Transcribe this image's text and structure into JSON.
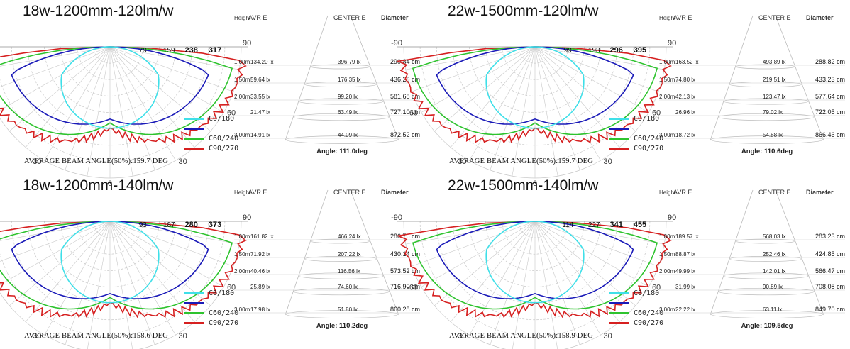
{
  "colors": {
    "c0_180": "#3fdfe8",
    "c60_240": "#2ec32e",
    "c90_270": "#d62020",
    "extra": "#1a1ab8",
    "grid": "#c8c8c8",
    "text": "#111111"
  },
  "legend": [
    "C0/180",
    "C60/240",
    "C90/270"
  ],
  "table_headers": {
    "height": "Height",
    "avr": "AVR E",
    "center": "CENTER E",
    "diameter": "Diameter"
  },
  "polar_angle_labels": {
    "left90": "-90",
    "right90": "90",
    "left60": "-60",
    "right60": "60",
    "left30": "-30",
    "right30": "30",
    "zero": "0"
  },
  "chart_data": [
    {
      "type": "polar",
      "title": "18w-1200mm-120lm/w",
      "scale_labels": [
        "79",
        "159",
        "238",
        "317"
      ],
      "beam_text": "AVERAGE BEAM ANGLE(50%):159.7 DEG",
      "angle_text": "Angle: 111.0deg",
      "rows": [
        {
          "h": "1.00m",
          "avr": "134.20 lx",
          "center": "396.79 lx",
          "dia": "290.84 cm"
        },
        {
          "h": "1.50m",
          "avr": "59.64 lx",
          "center": "176.35 lx",
          "dia": "436.26 cm"
        },
        {
          "h": "2.00m",
          "avr": "33.55 lx",
          "center": "99.20 lx",
          "dia": "581.68 cm"
        },
        {
          "h": "",
          "avr": "21.47 lx",
          "center": "63.49 lx",
          "dia": "727.10 cm"
        },
        {
          "h": "3.00m",
          "avr": "14.91 lx",
          "center": "44.09 lx",
          "dia": "872.52 cm"
        }
      ]
    },
    {
      "type": "polar",
      "title": "22w-1500mm-120lm/w",
      "scale_labels": [
        "99",
        "198",
        "296",
        "395"
      ],
      "beam_text": "AVERAGE BEAM ANGLE(50%):159.7 DEG",
      "angle_text": "Angle: 110.6deg",
      "rows": [
        {
          "h": "1.00m",
          "avr": "163.52 lx",
          "center": "493.89 lx",
          "dia": "288.82 cm"
        },
        {
          "h": "1.50m",
          "avr": "74.80 lx",
          "center": "219.51 lx",
          "dia": "433.23 cm"
        },
        {
          "h": "2.00m",
          "avr": "42.13 lx",
          "center": "123.47 lx",
          "dia": "577.64 cm"
        },
        {
          "h": "",
          "avr": "26.96 lx",
          "center": "79.02 lx",
          "dia": "722.05 cm"
        },
        {
          "h": "3.00m",
          "avr": "18.72 lx",
          "center": "54.88 lx",
          "dia": "866.46 cm"
        }
      ]
    },
    {
      "type": "polar",
      "title": "18w-1200mm-140lm/w",
      "scale_labels": [
        "93",
        "187",
        "280",
        "373"
      ],
      "beam_text": "AVERAGE BEAM ANGLE(50%):158.6 DEG",
      "angle_text": "Angle: 110.2deg",
      "rows": [
        {
          "h": "1.00m",
          "avr": "161.82 lx",
          "center": "466.24 lx",
          "dia": "286.76 cm"
        },
        {
          "h": "1.50m",
          "avr": "71.92 lx",
          "center": "207.22 lx",
          "dia": "430.14 cm"
        },
        {
          "h": "2.00m",
          "avr": "40.46 lx",
          "center": "116.56 lx",
          "dia": "573.52 cm"
        },
        {
          "h": "",
          "avr": "25.89 lx",
          "center": "74.60 lx",
          "dia": "716.90 cm"
        },
        {
          "h": "3.00m",
          "avr": "17.98 lx",
          "center": "51.80 lx",
          "dia": "860.28 cm"
        }
      ]
    },
    {
      "type": "polar",
      "title": "22w-1500mm-140lm/w",
      "scale_labels": [
        "114",
        "227",
        "341",
        "455"
      ],
      "beam_text": "AVERAGE BEAM ANGLE(50%):158.9  DEG",
      "angle_text": "Angle: 109.5deg",
      "rows": [
        {
          "h": "1.00m",
          "avr": "189.57 lx",
          "center": "568.03 lx",
          "dia": "283.23 cm"
        },
        {
          "h": "1.50m",
          "avr": "88.87 lx",
          "center": "252.46 lx",
          "dia": "424.85 cm"
        },
        {
          "h": "2.00m",
          "avr": "49.99 lx",
          "center": "142.01 lx",
          "dia": "566.47 cm"
        },
        {
          "h": "",
          "avr": "31.99 lx",
          "center": "90.89 lx",
          "dia": "708.08 cm"
        },
        {
          "h": "3.00m",
          "avr": "22.22 lx",
          "center": "63.11 lx",
          "dia": "849.70 cm"
        }
      ]
    }
  ]
}
